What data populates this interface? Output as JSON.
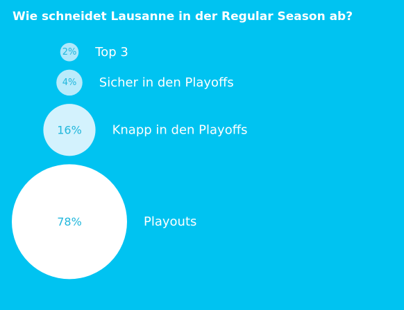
{
  "poll": {
    "title": "Wie schneidet Lausanne in der Regular Season ab?"
  },
  "colors": {
    "background": "#00c3f1",
    "bubble_scale": [
      "#b0e8fb",
      "#ffffff"
    ],
    "label_text": "#ffffff",
    "percent_text": "#21b7dc"
  },
  "chart_data": {
    "type": "bubble",
    "title": "Wie schneidet Lausanne in der Regular Season ab?",
    "categories": [
      "Top 3",
      "Sicher in den Playoffs",
      "Knapp in den Playoffs",
      "Playouts"
    ],
    "values": [
      2,
      4,
      16,
      78
    ],
    "value_labels": [
      "2%",
      "4%",
      "16%",
      "78%"
    ],
    "unit": "%"
  }
}
